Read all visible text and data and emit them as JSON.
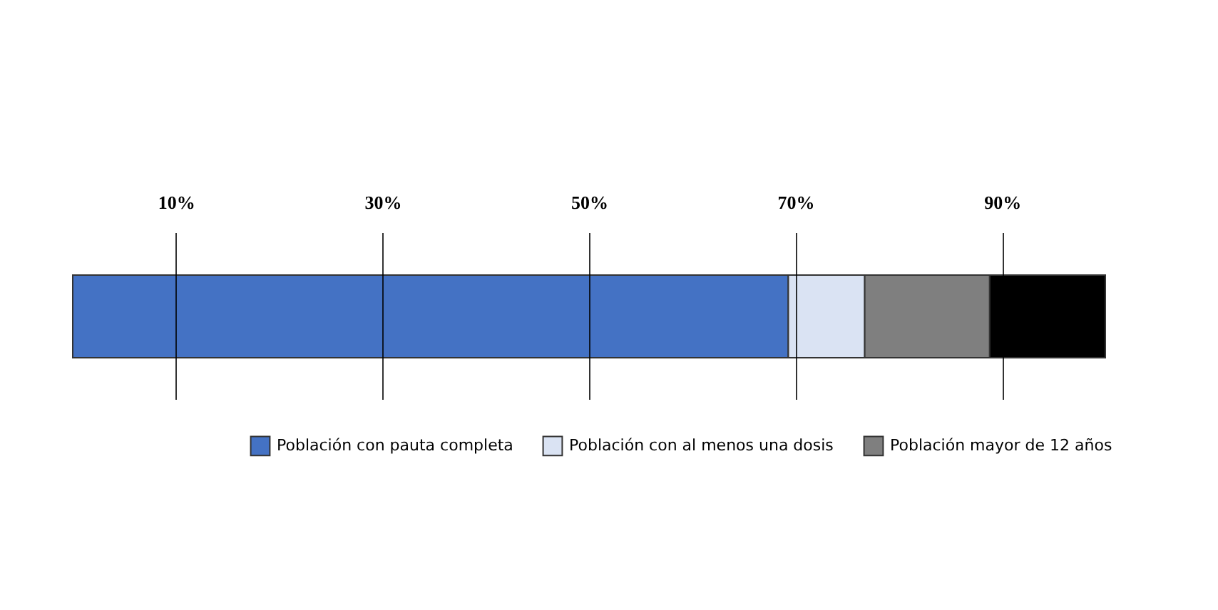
{
  "chart_data": {
    "type": "bar",
    "orientation": "horizontal",
    "stacked": true,
    "categories": [
      null
    ],
    "series": [
      {
        "name": "Población con pauta completa",
        "color": "#4472c4",
        "values": [
          69.3
        ]
      },
      {
        "name": "Población con al menos una dosis",
        "color": "#dae3f3",
        "values": [
          7.4
        ]
      },
      {
        "name": "Población mayor de 12 años",
        "color": "#7f7f7f",
        "values": [
          12.1
        ]
      },
      {
        "color": "#000000",
        "values": [
          11.2
        ]
      }
    ],
    "xlim": [
      0,
      100
    ],
    "xticks": [
      {
        "value": 10,
        "label": "10%"
      },
      {
        "value": 30,
        "label": "30%"
      },
      {
        "value": 50,
        "label": "50%"
      },
      {
        "value": 70,
        "label": "70%"
      },
      {
        "value": 90,
        "label": "90%"
      }
    ],
    "grid": "x",
    "legend": "bottom right",
    "tick_labels": "x"
  }
}
